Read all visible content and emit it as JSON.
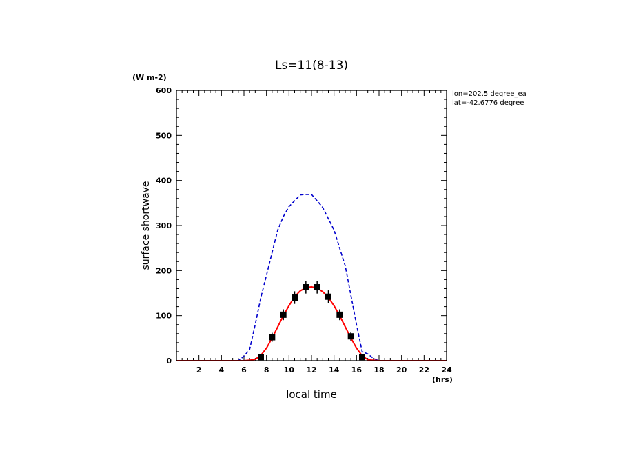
{
  "chart_data": {
    "type": "line",
    "title": "Ls=11(8-13)",
    "xlabel": "local time",
    "ylabel": "surface shortwave",
    "x_unit": "(hrs)",
    "y_unit": "(W m-2)",
    "annotations": [
      "lon=202.5 degree_ea",
      "lat=-42.6776 degree"
    ],
    "xlim": [
      0,
      24
    ],
    "ylim": [
      0,
      600
    ],
    "x_ticks": [
      2,
      4,
      6,
      8,
      10,
      12,
      14,
      16,
      18,
      20,
      22,
      24
    ],
    "y_ticks": [
      0,
      100,
      200,
      300,
      400,
      500,
      600
    ],
    "series": [
      {
        "style": "dashed",
        "color": "#0000cc",
        "x": [
          0,
          1,
          2,
          3,
          4,
          5,
          5.5,
          6,
          6.5,
          7,
          7.5,
          8,
          8.5,
          9,
          9.5,
          10,
          10.5,
          11,
          11.5,
          12,
          12.5,
          13,
          13.5,
          14,
          14.5,
          15,
          15.5,
          16,
          16.5,
          17,
          17.5,
          18,
          19,
          20,
          21,
          22,
          23,
          24
        ],
        "y": [
          0,
          0,
          0,
          0,
          0,
          0,
          0,
          10,
          25,
          80,
          140,
          190,
          240,
          290,
          320,
          342,
          355,
          368,
          369,
          369,
          355,
          340,
          315,
          290,
          250,
          210,
          145,
          80,
          20,
          15,
          5,
          0,
          0,
          0,
          0,
          0,
          0,
          0
        ]
      },
      {
        "style": "solid",
        "color": "#ff0000",
        "x": [
          0,
          1,
          2,
          3,
          4,
          5,
          6,
          6.5,
          7,
          7.5,
          8,
          8.5,
          9,
          9.5,
          10,
          10.5,
          11,
          11.5,
          12,
          12.5,
          13,
          13.5,
          14,
          14.5,
          15,
          15.5,
          16,
          16.5,
          17,
          18,
          19,
          20,
          21,
          22,
          23,
          24
        ],
        "y": [
          0,
          0,
          0,
          0,
          0,
          0,
          0,
          1,
          3,
          12,
          28,
          50,
          75,
          100,
          122,
          142,
          155,
          162,
          164,
          161,
          153,
          140,
          122,
          100,
          75,
          50,
          28,
          11,
          2,
          0,
          0,
          0,
          0,
          0,
          0,
          0
        ]
      },
      {
        "style": "markers",
        "color": "#000000",
        "x": [
          7.5,
          8.5,
          9.5,
          10.5,
          11.5,
          12.5,
          13.5,
          14.5,
          15.5,
          16.5
        ],
        "y": [
          8,
          52,
          102,
          140,
          163,
          163,
          142,
          102,
          54,
          8
        ],
        "err": [
          6,
          10,
          12,
          14,
          14,
          14,
          14,
          12,
          10,
          6
        ]
      }
    ]
  }
}
